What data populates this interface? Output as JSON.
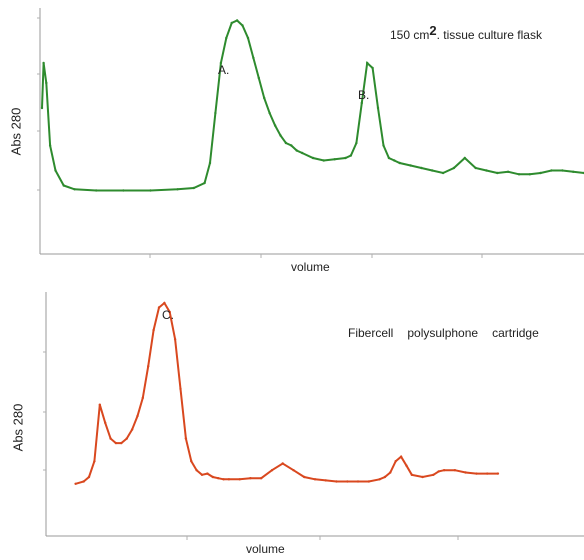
{
  "chart_data": [
    {
      "type": "line",
      "title_parts": [
        "150 cm",
        "2",
        ". tissue culture flask"
      ],
      "xlabel": "volume",
      "ylabel": "Abs 280",
      "color": "#2e8b2e",
      "grid": false,
      "xlim": [
        0,
        100
      ],
      "ylim": [
        0,
        100
      ],
      "annotations": [
        {
          "label": "A.",
          "x": 36,
          "y": 95
        },
        {
          "label": "B.",
          "x": 61,
          "y": 79
        }
      ],
      "series": [
        {
          "x": [
            0,
            0.3,
            0.8,
            1.5,
            2.5,
            4,
            6,
            10,
            15,
            20,
            25,
            28,
            30,
            31,
            32,
            33,
            34,
            35,
            36,
            37,
            38,
            39,
            40,
            41,
            42,
            43,
            44,
            45,
            46,
            47,
            48,
            50,
            52,
            54,
            56,
            57,
            58,
            59,
            60,
            61,
            62,
            63,
            64,
            65,
            66,
            68,
            70,
            72,
            74,
            76,
            78,
            80,
            82,
            84,
            86,
            88,
            90,
            92,
            94,
            96,
            98,
            100
          ],
          "y": [
            60,
            78,
            70,
            45,
            35,
            29,
            27.5,
            27,
            27,
            27,
            27.5,
            28,
            30,
            38,
            58,
            78,
            88,
            94,
            95,
            93,
            88,
            80,
            72,
            64,
            58,
            53,
            49,
            46,
            45,
            43,
            42,
            40,
            39,
            39.5,
            40,
            41,
            46,
            62,
            78,
            76,
            60,
            45,
            40,
            39,
            38,
            37,
            36,
            35,
            34,
            36,
            40,
            36,
            35,
            34,
            34.5,
            33.5,
            33.5,
            34,
            35,
            35,
            34.5,
            34
          ]
        }
      ]
    },
    {
      "type": "line",
      "title_parts": [
        "Fibercell",
        "polysulphone",
        "cartridge"
      ],
      "xlabel": "volume",
      "ylabel": "Abs 280",
      "color": "#d9481f",
      "grid": false,
      "xlim": [
        0,
        100
      ],
      "ylim": [
        0,
        100
      ],
      "annotations": [
        {
          "label": "C.",
          "x": 22,
          "y": 96
        }
      ],
      "series": [
        {
          "x": [
            5.5,
            7,
            8,
            9,
            10,
            11,
            12,
            13,
            14,
            15,
            16,
            17,
            18,
            19,
            20,
            21,
            22,
            23,
            24,
            25,
            26,
            27,
            28,
            29,
            30,
            31,
            32,
            33,
            34,
            36,
            38,
            40,
            42,
            44,
            46,
            48,
            50,
            52,
            54,
            56,
            58,
            60,
            62,
            63,
            64,
            65,
            66,
            67,
            68,
            70,
            72,
            73,
            74,
            76,
            78,
            80,
            82,
            84
          ],
          "y": [
            20,
            21,
            23,
            30,
            55,
            47,
            40,
            38,
            38,
            40,
            44,
            50,
            58,
            72,
            88,
            98,
            100,
            96,
            84,
            62,
            40,
            30,
            26,
            24,
            24.5,
            23,
            22.5,
            22,
            22,
            22,
            22.5,
            22.5,
            26,
            29,
            26,
            23,
            22,
            21.5,
            21,
            21,
            21,
            21,
            22,
            23,
            25,
            30,
            32,
            28,
            24,
            23,
            24,
            25.5,
            26,
            26,
            25,
            24.5,
            24.5,
            24.5
          ]
        }
      ]
    }
  ]
}
